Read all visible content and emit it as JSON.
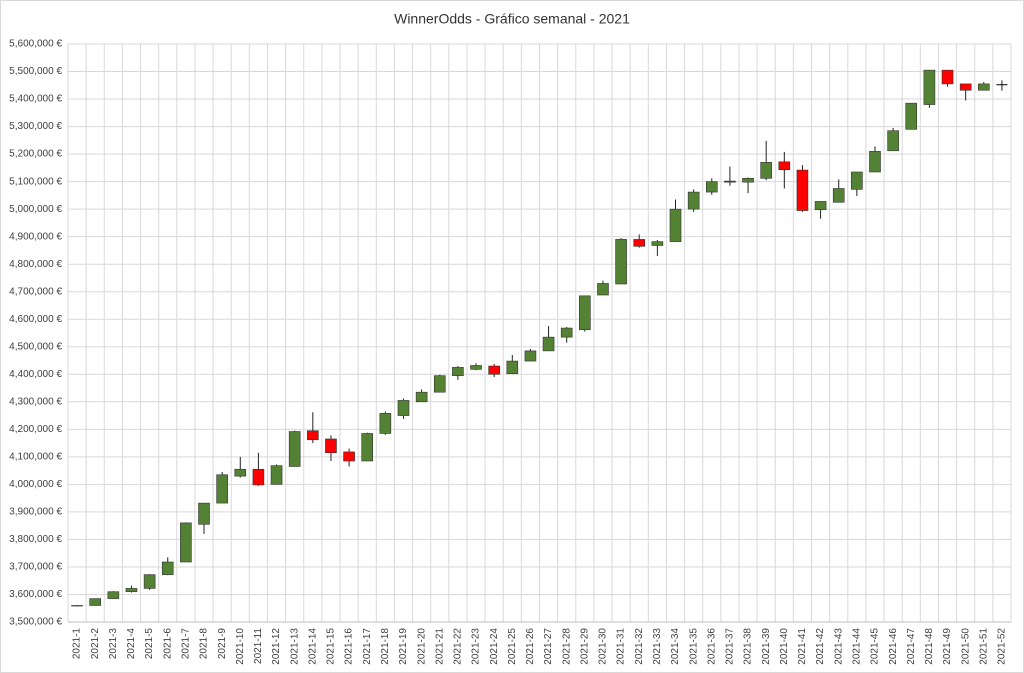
{
  "chart_data": {
    "type": "candlestick",
    "title": "WinnerOdds - Gráfico semanal - 2021",
    "categories": [
      "2021-1",
      "2021-2",
      "2021-3",
      "2021-4",
      "2021-5",
      "2021-6",
      "2021-7",
      "2021-8",
      "2021-9",
      "2021-10",
      "2021-11",
      "2021-12",
      "2021-13",
      "2021-14",
      "2021-15",
      "2021-16",
      "2021-17",
      "2021-18",
      "2021-19",
      "2021-20",
      "2021-21",
      "2021-22",
      "2021-23",
      "2021-24",
      "2021-25",
      "2021-26",
      "2021-27",
      "2021-28",
      "2021-29",
      "2021-30",
      "2021-31",
      "2021-32",
      "2021-33",
      "2021-34",
      "2021-35",
      "2021-36",
      "2021-37",
      "2021-38",
      "2021-39",
      "2021-40",
      "2021-41",
      "2021-42",
      "2021-43",
      "2021-44",
      "2021-45",
      "2021-46",
      "2021-47",
      "2021-48",
      "2021-49",
      "2021-50",
      "2021-51",
      "2021-52"
    ],
    "open": [
      3560000,
      3560000,
      3585000,
      3610000,
      3622000,
      3672000,
      3718000,
      3855000,
      3932000,
      4030000,
      4055000,
      4000000,
      4065000,
      4195000,
      4165000,
      4118000,
      4085000,
      4185000,
      4250000,
      4300000,
      4335000,
      4395000,
      4418000,
      4430000,
      4402000,
      4448000,
      4485000,
      4535000,
      4562000,
      4688000,
      4728000,
      4890000,
      4868000,
      4882000,
      5000000,
      5062000,
      5102000,
      5098000,
      5112000,
      5172000,
      5142000,
      4998000,
      5025000,
      5072000,
      5135000,
      5212000,
      5290000,
      5380000,
      5505000,
      5455000,
      5432000,
      5452000
    ],
    "high": [
      3561000,
      3585000,
      3612000,
      3632000,
      3674000,
      3735000,
      3862000,
      3932000,
      4045000,
      4100000,
      4115000,
      4072000,
      4195000,
      4262000,
      4178000,
      4130000,
      4188000,
      4265000,
      4312000,
      4345000,
      4398000,
      4430000,
      4440000,
      4438000,
      4470000,
      4492000,
      4575000,
      4572000,
      4685000,
      4740000,
      4895000,
      4908000,
      4888000,
      5035000,
      5072000,
      5112000,
      5155000,
      5115000,
      5248000,
      5208000,
      5160000,
      5028000,
      5108000,
      5135000,
      5228000,
      5295000,
      5385000,
      5505000,
      5505000,
      5455000,
      5462000,
      5468000
    ],
    "low": [
      3557000,
      3560000,
      3585000,
      3607000,
      3617000,
      3670000,
      3718000,
      3820000,
      3932000,
      4025000,
      3995000,
      4000000,
      4065000,
      4150000,
      4085000,
      4065000,
      4085000,
      4180000,
      4238000,
      4300000,
      4335000,
      4380000,
      4415000,
      4390000,
      4402000,
      4448000,
      4485000,
      4515000,
      4555000,
      4688000,
      4728000,
      4860000,
      4830000,
      4882000,
      4990000,
      5052000,
      5085000,
      5058000,
      5105000,
      5075000,
      4990000,
      4965000,
      5025000,
      5048000,
      5135000,
      5212000,
      5290000,
      5368000,
      5445000,
      5395000,
      5432000,
      5430000
    ],
    "close": [
      3558000,
      3585000,
      3610000,
      3622000,
      3672000,
      3718000,
      3860000,
      3932000,
      4035000,
      4055000,
      3998000,
      4068000,
      4192000,
      4162000,
      4115000,
      4085000,
      4185000,
      4258000,
      4305000,
      4335000,
      4395000,
      4425000,
      4432000,
      4400000,
      4448000,
      4485000,
      4535000,
      4568000,
      4685000,
      4730000,
      4890000,
      4865000,
      4882000,
      5000000,
      5062000,
      5100000,
      5098000,
      5112000,
      5170000,
      5143000,
      4995000,
      5028000,
      5075000,
      5135000,
      5210000,
      5285000,
      5385000,
      5505000,
      5455000,
      5432000,
      5455000,
      5452000
    ],
    "up_color": "#548235",
    "down_color": "#ff0000",
    "doji_color": "#000000",
    "ylim": [
      3500000,
      5600000
    ],
    "yticks": [
      {
        "value": 3500000,
        "label": "3,500,000 €"
      },
      {
        "value": 3600000,
        "label": "3,600,000 €"
      },
      {
        "value": 3700000,
        "label": "3,700,000 €"
      },
      {
        "value": 3800000,
        "label": "3,800,000 €"
      },
      {
        "value": 3900000,
        "label": "3,900,000 €"
      },
      {
        "value": 4000000,
        "label": "4,000,000 €"
      },
      {
        "value": 4100000,
        "label": "4,100,000 €"
      },
      {
        "value": 4200000,
        "label": "4,200,000 €"
      },
      {
        "value": 4300000,
        "label": "4,300,000 €"
      },
      {
        "value": 4400000,
        "label": "4,400,000 €"
      },
      {
        "value": 4500000,
        "label": "4,500,000 €"
      },
      {
        "value": 4600000,
        "label": "4,600,000 €"
      },
      {
        "value": 4700000,
        "label": "4,700,000 €"
      },
      {
        "value": 4800000,
        "label": "4,800,000 €"
      },
      {
        "value": 4900000,
        "label": "4,900,000 €"
      },
      {
        "value": 5000000,
        "label": "5,000,000 €"
      },
      {
        "value": 5100000,
        "label": "5,100,000 €"
      },
      {
        "value": 5200000,
        "label": "5,200,000 €"
      },
      {
        "value": 5300000,
        "label": "5,300,000 €"
      },
      {
        "value": 5400000,
        "label": "5,400,000 €"
      },
      {
        "value": 5500000,
        "label": "5,500,000 €"
      },
      {
        "value": 5600000,
        "label": "5,600,000 €"
      }
    ],
    "grid": true
  }
}
